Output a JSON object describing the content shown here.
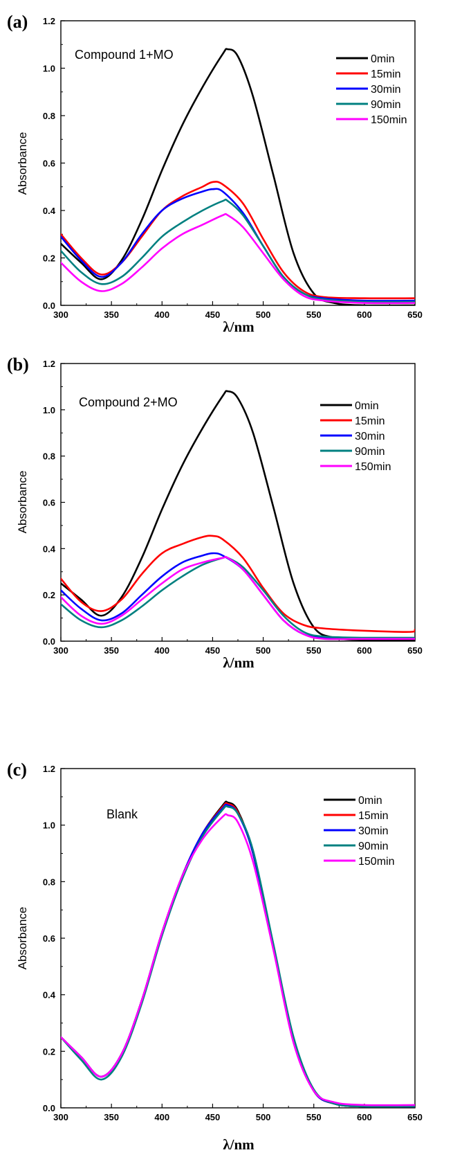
{
  "chart_data": [
    {
      "panel_label": "(a)",
      "type": "line",
      "annotation": "Compound 1+MO",
      "xlabel": "λ/nm",
      "ylabel": "Absorbance",
      "xlim": [
        300,
        650
      ],
      "ylim": [
        0,
        1.2
      ],
      "xticks": [
        "300",
        "350",
        "400",
        "450",
        "500",
        "550",
        "600",
        "650"
      ],
      "yticks": [
        "0.0",
        "0.2",
        "0.4",
        "0.6",
        "0.8",
        "1.0",
        "1.2"
      ],
      "legend_position": "top-right",
      "series": [
        {
          "name": "0min",
          "color": "#000000",
          "x": [
            300,
            320,
            340,
            360,
            380,
            400,
            420,
            440,
            460,
            465,
            475,
            490,
            510,
            530,
            550,
            570,
            600,
            650
          ],
          "y": [
            0.26,
            0.18,
            0.11,
            0.19,
            0.36,
            0.57,
            0.76,
            0.92,
            1.06,
            1.08,
            1.05,
            0.88,
            0.55,
            0.22,
            0.05,
            0.01,
            0.0,
            0.0
          ]
        },
        {
          "name": "15min",
          "color": "#ff0000",
          "x": [
            300,
            320,
            340,
            360,
            380,
            400,
            420,
            440,
            450,
            460,
            480,
            500,
            520,
            540,
            560,
            600,
            650
          ],
          "y": [
            0.3,
            0.2,
            0.13,
            0.18,
            0.29,
            0.4,
            0.46,
            0.5,
            0.52,
            0.51,
            0.43,
            0.28,
            0.14,
            0.06,
            0.035,
            0.03,
            0.03
          ]
        },
        {
          "name": "30min",
          "color": "#0000ff",
          "x": [
            300,
            320,
            340,
            360,
            380,
            400,
            420,
            440,
            450,
            460,
            480,
            500,
            520,
            540,
            560,
            600,
            650
          ],
          "y": [
            0.29,
            0.19,
            0.12,
            0.18,
            0.3,
            0.4,
            0.45,
            0.48,
            0.49,
            0.48,
            0.39,
            0.25,
            0.12,
            0.05,
            0.03,
            0.02,
            0.02
          ]
        },
        {
          "name": "90min",
          "color": "#008080",
          "x": [
            300,
            320,
            340,
            360,
            380,
            400,
            420,
            440,
            460,
            465,
            480,
            500,
            520,
            540,
            560,
            600,
            650
          ],
          "y": [
            0.23,
            0.14,
            0.09,
            0.12,
            0.2,
            0.29,
            0.35,
            0.4,
            0.44,
            0.44,
            0.38,
            0.25,
            0.12,
            0.05,
            0.025,
            0.015,
            0.015
          ]
        },
        {
          "name": "150min",
          "color": "#ff00ff",
          "x": [
            300,
            320,
            340,
            360,
            380,
            400,
            420,
            440,
            460,
            465,
            480,
            500,
            520,
            540,
            560,
            600,
            650
          ],
          "y": [
            0.18,
            0.1,
            0.06,
            0.09,
            0.16,
            0.24,
            0.3,
            0.34,
            0.38,
            0.38,
            0.33,
            0.22,
            0.11,
            0.04,
            0.02,
            0.01,
            0.01
          ]
        }
      ]
    },
    {
      "panel_label": "(b)",
      "type": "line",
      "annotation": "Compound 2+MO",
      "xlabel": "λ/nm",
      "ylabel": "Absorbance",
      "xlim": [
        300,
        650
      ],
      "ylim": [
        0,
        1.2
      ],
      "xticks": [
        "300",
        "350",
        "400",
        "450",
        "500",
        "550",
        "600",
        "650"
      ],
      "yticks": [
        "0.0",
        "0.2",
        "0.4",
        "0.6",
        "0.8",
        "1.0",
        "1.2"
      ],
      "legend_position": "top-right",
      "series": [
        {
          "name": "0min",
          "color": "#000000",
          "x": [
            300,
            320,
            340,
            360,
            380,
            400,
            420,
            440,
            460,
            465,
            475,
            490,
            510,
            530,
            550,
            570,
            600,
            650
          ],
          "y": [
            0.25,
            0.18,
            0.11,
            0.19,
            0.36,
            0.57,
            0.76,
            0.92,
            1.06,
            1.08,
            1.05,
            0.9,
            0.58,
            0.25,
            0.06,
            0.015,
            0.005,
            0.005
          ]
        },
        {
          "name": "15min",
          "color": "#ff0000",
          "x": [
            300,
            320,
            340,
            360,
            380,
            400,
            420,
            440,
            450,
            460,
            480,
            500,
            520,
            540,
            560,
            600,
            645,
            650
          ],
          "y": [
            0.27,
            0.17,
            0.13,
            0.18,
            0.29,
            0.38,
            0.42,
            0.45,
            0.455,
            0.44,
            0.36,
            0.23,
            0.12,
            0.07,
            0.055,
            0.045,
            0.04,
            0.05
          ]
        },
        {
          "name": "30min",
          "color": "#0000ff",
          "x": [
            300,
            320,
            340,
            360,
            380,
            400,
            420,
            440,
            450,
            460,
            480,
            500,
            520,
            540,
            560,
            600,
            650
          ],
          "y": [
            0.22,
            0.14,
            0.09,
            0.12,
            0.2,
            0.28,
            0.34,
            0.37,
            0.38,
            0.37,
            0.31,
            0.2,
            0.09,
            0.03,
            0.015,
            0.01,
            0.01
          ]
        },
        {
          "name": "90min",
          "color": "#008080",
          "x": [
            300,
            320,
            340,
            360,
            380,
            400,
            420,
            440,
            460,
            465,
            480,
            500,
            520,
            540,
            560,
            600,
            650
          ],
          "y": [
            0.16,
            0.09,
            0.06,
            0.09,
            0.15,
            0.22,
            0.28,
            0.33,
            0.36,
            0.36,
            0.32,
            0.22,
            0.11,
            0.04,
            0.02,
            0.015,
            0.015
          ]
        },
        {
          "name": "150min",
          "color": "#ff00ff",
          "x": [
            300,
            320,
            340,
            360,
            380,
            400,
            420,
            440,
            460,
            465,
            480,
            500,
            520,
            540,
            560,
            600,
            650
          ],
          "y": [
            0.19,
            0.11,
            0.075,
            0.11,
            0.18,
            0.25,
            0.31,
            0.34,
            0.36,
            0.36,
            0.31,
            0.2,
            0.09,
            0.03,
            0.01,
            0.01,
            0.01
          ]
        }
      ]
    },
    {
      "panel_label": "(c)",
      "type": "line",
      "annotation": "Blank",
      "xlabel": "λ/nm",
      "ylabel": "Absorbance",
      "xlim": [
        300,
        650
      ],
      "ylim": [
        0,
        1.2
      ],
      "xticks": [
        "300",
        "350",
        "400",
        "450",
        "500",
        "550",
        "600",
        "650"
      ],
      "yticks": [
        "0.0",
        "0.2",
        "0.4",
        "0.6",
        "0.8",
        "1.0",
        "1.2"
      ],
      "legend_position": "top-right",
      "series": [
        {
          "name": "0min",
          "color": "#000000",
          "x": [
            300,
            320,
            340,
            360,
            380,
            400,
            420,
            440,
            460,
            465,
            475,
            490,
            510,
            530,
            550,
            570,
            600,
            650
          ],
          "y": [
            0.25,
            0.18,
            0.11,
            0.19,
            0.38,
            0.62,
            0.82,
            0.97,
            1.07,
            1.08,
            1.05,
            0.9,
            0.57,
            0.24,
            0.06,
            0.015,
            0.005,
            0.005
          ]
        },
        {
          "name": "15min",
          "color": "#ff0000",
          "x": [
            300,
            320,
            340,
            360,
            380,
            400,
            420,
            440,
            460,
            465,
            475,
            490,
            510,
            530,
            550,
            570,
            600,
            650
          ],
          "y": [
            0.25,
            0.18,
            0.11,
            0.19,
            0.38,
            0.62,
            0.82,
            0.97,
            1.065,
            1.075,
            1.045,
            0.9,
            0.57,
            0.24,
            0.06,
            0.015,
            0.005,
            0.005
          ]
        },
        {
          "name": "30min",
          "color": "#0000ff",
          "x": [
            300,
            320,
            340,
            360,
            380,
            400,
            420,
            440,
            460,
            465,
            475,
            490,
            510,
            530,
            550,
            570,
            600,
            650
          ],
          "y": [
            0.25,
            0.18,
            0.11,
            0.19,
            0.38,
            0.62,
            0.82,
            0.97,
            1.06,
            1.07,
            1.04,
            0.9,
            0.57,
            0.24,
            0.06,
            0.015,
            0.005,
            0.005
          ]
        },
        {
          "name": "90min",
          "color": "#008080",
          "x": [
            300,
            320,
            340,
            360,
            380,
            400,
            420,
            440,
            460,
            465,
            475,
            490,
            510,
            530,
            550,
            570,
            600,
            650
          ],
          "y": [
            0.25,
            0.17,
            0.1,
            0.18,
            0.37,
            0.61,
            0.81,
            0.96,
            1.055,
            1.065,
            1.04,
            0.91,
            0.58,
            0.25,
            0.065,
            0.015,
            0.005,
            0.005
          ]
        },
        {
          "name": "150min",
          "color": "#ff00ff",
          "x": [
            300,
            320,
            340,
            360,
            380,
            400,
            420,
            440,
            460,
            465,
            475,
            490,
            510,
            530,
            550,
            570,
            600,
            650
          ],
          "y": [
            0.25,
            0.18,
            0.11,
            0.19,
            0.38,
            0.62,
            0.82,
            0.95,
            1.03,
            1.035,
            1.01,
            0.87,
            0.56,
            0.23,
            0.06,
            0.02,
            0.01,
            0.01
          ]
        }
      ]
    }
  ]
}
